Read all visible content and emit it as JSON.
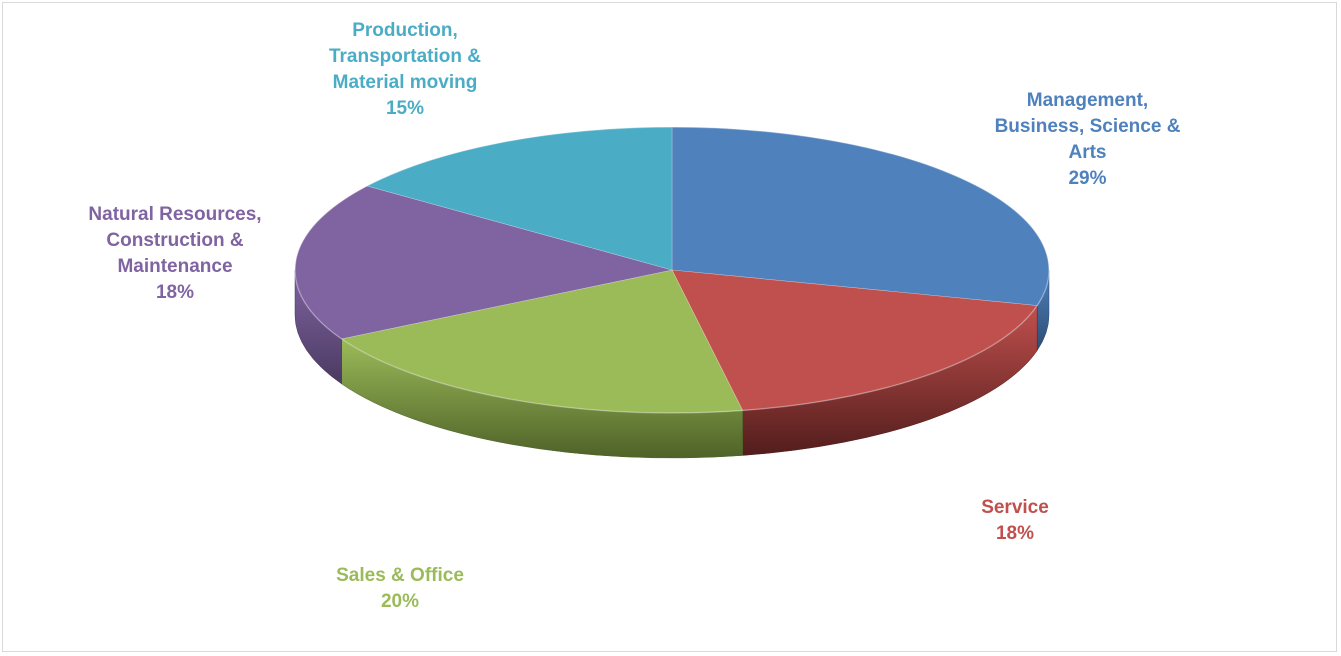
{
  "chart_data": {
    "type": "pie",
    "style": "3d",
    "slices": [
      {
        "name_lines": [
          "Management,",
          "Business, Science &",
          "Arts"
        ],
        "value": 29,
        "value_label": "29%",
        "color": "#4F81BD",
        "side_color": "#2E4D73"
      },
      {
        "name_lines": [
          "Service"
        ],
        "value": 18,
        "value_label": "18%",
        "color": "#C0504D",
        "side_color": "#521D1C"
      },
      {
        "name_lines": [
          "Sales & Office"
        ],
        "value": 20,
        "value_label": "20%",
        "color": "#9BBB59",
        "side_color": "#4F6228"
      },
      {
        "name_lines": [
          "Natural Resources,",
          "Construction &",
          "Maintenance"
        ],
        "value": 18,
        "value_label": "18%",
        "color": "#8064A2",
        "side_color": "#4B3A61"
      },
      {
        "name_lines": [
          "Production,",
          "Transportation &",
          "Material moving"
        ],
        "value": 15,
        "value_label": "15%",
        "color": "#4BACC6",
        "side_color": "#2A6878"
      }
    ]
  }
}
